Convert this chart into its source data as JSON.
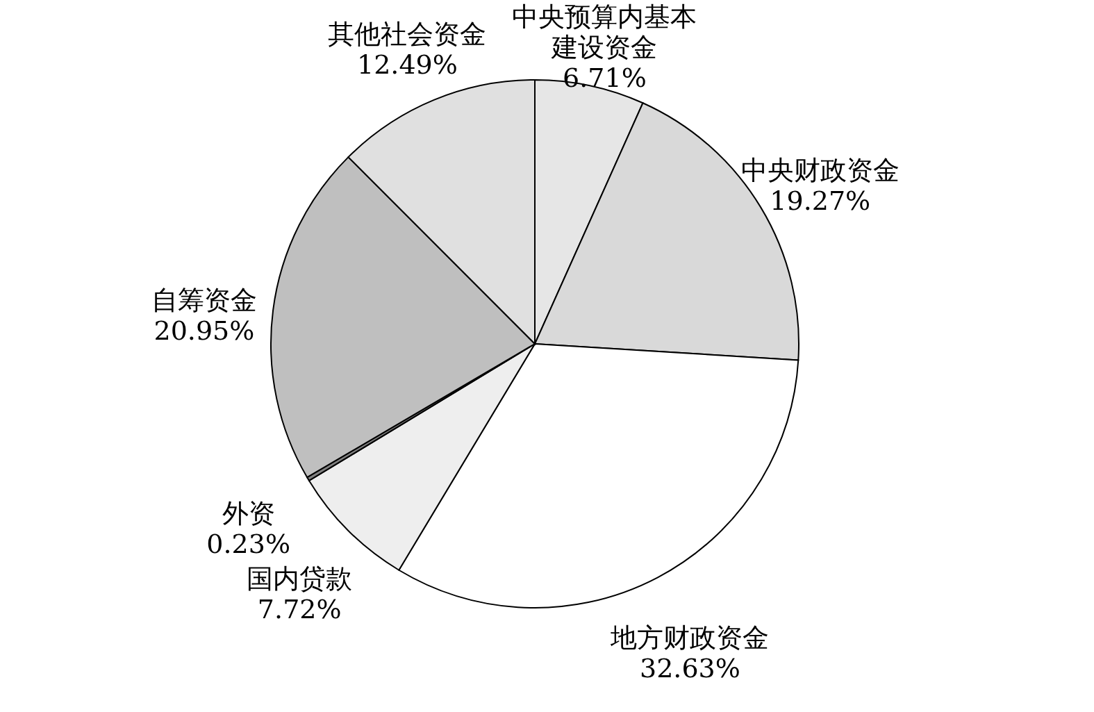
{
  "chart_data": {
    "type": "pie",
    "categories": [
      "中央预算内基本建设资金",
      "中央财政资金",
      "地方财政资金",
      "国内贷款",
      "外资",
      "自筹资金",
      "其他社会资金"
    ],
    "values": [
      6.71,
      19.27,
      32.63,
      7.72,
      0.23,
      20.95,
      12.49
    ],
    "value_labels": [
      "6.71%",
      "19.27%",
      "32.63%",
      "7.72%",
      "0.23%",
      "20.95%",
      "12.49%"
    ],
    "colors": [
      "#e6e6e6",
      "#d9d9d9",
      "#ffffff",
      "#eeeeee",
      "#808080",
      "#bfbfbf",
      "#e0e0e0"
    ],
    "legend": false
  }
}
